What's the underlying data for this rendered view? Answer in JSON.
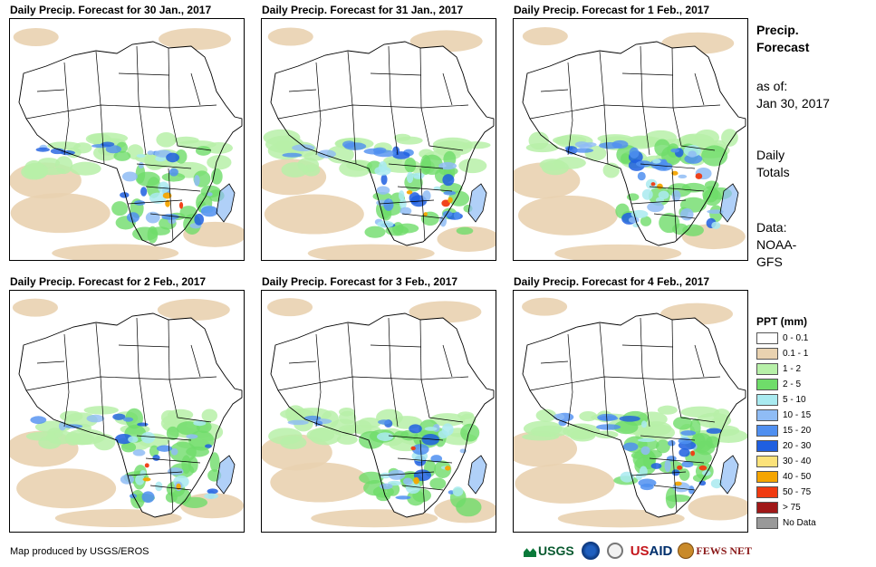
{
  "panels": [
    {
      "title": "Daily Precip. Forecast for 30 Jan., 2017",
      "intensity": 0.85
    },
    {
      "title": "Daily Precip. Forecast for 31 Jan., 2017",
      "intensity": 0.95
    },
    {
      "title": "Daily Precip. Forecast for 1 Feb., 2017",
      "intensity": 1.0
    },
    {
      "title": "Daily Precip. Forecast for 2 Feb., 2017",
      "intensity": 0.75
    },
    {
      "title": "Daily Precip. Forecast for 3 Feb., 2017",
      "intensity": 0.8
    },
    {
      "title": "Daily Precip. Forecast for 4 Feb., 2017",
      "intensity": 0.9
    }
  ],
  "sidebar": {
    "heading_line1": "Precip.",
    "heading_line2": "Forecast",
    "asof_label": "as of:",
    "asof_date": "Jan 30, 2017",
    "totals_line1": "Daily",
    "totals_line2": "Totals",
    "data_label": "Data:",
    "data_source_line1": "NOAA-",
    "data_source_line2": "GFS"
  },
  "legend": {
    "title": "PPT (mm)",
    "items": [
      {
        "label": "0 - 0.1",
        "color": "#ffffff"
      },
      {
        "label": "0.1 - 1",
        "color": "#e9d2b0"
      },
      {
        "label": "1 - 2",
        "color": "#b7f0a8"
      },
      {
        "label": "2 - 5",
        "color": "#6fdc6a"
      },
      {
        "label": "5 - 10",
        "color": "#a9eaf0"
      },
      {
        "label": "10 - 15",
        "color": "#8fbcf5"
      },
      {
        "label": "15 - 20",
        "color": "#4f8ff0"
      },
      {
        "label": "20 - 30",
        "color": "#1f5fe0"
      },
      {
        "label": "30 - 40",
        "color": "#fbe27a"
      },
      {
        "label": "40 - 50",
        "color": "#f5a500"
      },
      {
        "label": "50 - 75",
        "color": "#f03a10"
      },
      {
        "label": "> 75",
        "color": "#a01818"
      },
      {
        "label": "No Data",
        "color": "#999999"
      }
    ]
  },
  "credit": "Map produced by USGS/EROS",
  "logos": {
    "usgs": "USGS",
    "usaid_a": "US",
    "usaid_b": "AID",
    "fews": "FEWS NET"
  }
}
